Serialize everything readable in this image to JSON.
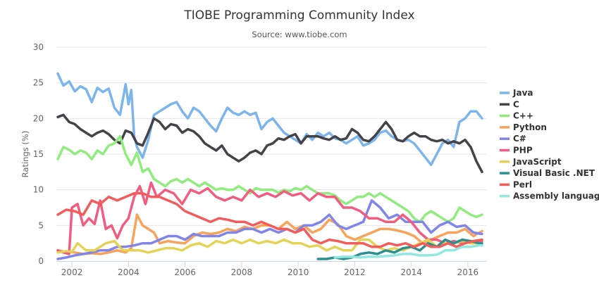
{
  "chart_data": {
    "type": "line",
    "title": "TIOBE Programming Community Index",
    "subtitle": "Source: www.tiobe.com",
    "xlabel": "",
    "ylabel": "Ratings (%)",
    "xlim": [
      2001.45,
      2016.65
    ],
    "ylim": [
      0,
      30
    ],
    "xticks": [
      2002,
      2004,
      2006,
      2008,
      2010,
      2012,
      2014,
      2016
    ],
    "yticks": [
      0,
      5,
      10,
      15,
      20,
      25,
      30
    ],
    "grid": true,
    "legend": "right",
    "series": [
      {
        "name": "Java",
        "color": "#7cb5ec",
        "x": [
          2001.5,
          2001.7,
          2001.9,
          2002.1,
          2002.3,
          2002.5,
          2002.7,
          2002.9,
          2003.1,
          2003.3,
          2003.5,
          2003.7,
          2003.9,
          2004.0,
          2004.1,
          2004.2,
          2004.3,
          2004.5,
          2004.7,
          2004.9,
          2005.1,
          2005.3,
          2005.5,
          2005.7,
          2005.9,
          2006.1,
          2006.3,
          2006.5,
          2006.7,
          2006.9,
          2007.1,
          2007.3,
          2007.5,
          2007.7,
          2007.9,
          2008.1,
          2008.3,
          2008.5,
          2008.7,
          2008.9,
          2009.1,
          2009.3,
          2009.5,
          2009.7,
          2009.9,
          2010.1,
          2010.3,
          2010.5,
          2010.7,
          2010.9,
          2011.1,
          2011.3,
          2011.5,
          2011.7,
          2011.9,
          2012.1,
          2012.3,
          2012.5,
          2012.7,
          2012.9,
          2013.1,
          2013.3,
          2013.5,
          2013.7,
          2013.9,
          2014.1,
          2014.3,
          2014.5,
          2014.7,
          2014.9,
          2015.1,
          2015.3,
          2015.5,
          2015.7,
          2015.9,
          2016.1,
          2016.3,
          2016.5
        ],
        "values": [
          26.3,
          24.6,
          25.2,
          23.8,
          24.5,
          24.1,
          22.3,
          24.3,
          23.7,
          24.2,
          21.5,
          20.5,
          24.8,
          22.0,
          24.0,
          17.5,
          16.0,
          14.5,
          17.0,
          20.5,
          21.0,
          21.5,
          22.0,
          22.3,
          21.0,
          20.0,
          21.5,
          21.0,
          20.0,
          19.0,
          18.2,
          20.0,
          21.5,
          20.8,
          20.5,
          21.0,
          20.5,
          20.8,
          18.5,
          19.5,
          20.0,
          19.0,
          18.0,
          17.5,
          17.0,
          16.5,
          17.8,
          17.0,
          18.0,
          17.5,
          18.0,
          17.2,
          17.0,
          16.5,
          17.0,
          17.5,
          16.2,
          16.5,
          17.0,
          18.0,
          18.3,
          17.5,
          17.0,
          16.8,
          17.0,
          16.5,
          15.5,
          14.5,
          13.5,
          15.0,
          16.5,
          17.0,
          16.0,
          19.5,
          20.0,
          21.0,
          21.0,
          20.0
        ]
      },
      {
        "name": "C",
        "color": "#434348",
        "x": [
          2001.5,
          2001.7,
          2001.9,
          2002.1,
          2002.3,
          2002.5,
          2002.7,
          2002.9,
          2003.1,
          2003.3,
          2003.5,
          2003.7,
          2003.9,
          2004.1,
          2004.3,
          2004.5,
          2004.7,
          2004.9,
          2005.1,
          2005.3,
          2005.5,
          2005.7,
          2005.9,
          2006.1,
          2006.3,
          2006.5,
          2006.7,
          2006.9,
          2007.1,
          2007.3,
          2007.5,
          2007.7,
          2007.9,
          2008.1,
          2008.3,
          2008.5,
          2008.7,
          2008.9,
          2009.1,
          2009.3,
          2009.5,
          2009.7,
          2009.9,
          2010.1,
          2010.3,
          2010.5,
          2010.7,
          2010.9,
          2011.1,
          2011.3,
          2011.5,
          2011.7,
          2011.9,
          2012.1,
          2012.3,
          2012.5,
          2012.7,
          2012.9,
          2013.1,
          2013.3,
          2013.5,
          2013.7,
          2013.9,
          2014.1,
          2014.3,
          2014.5,
          2014.7,
          2014.9,
          2015.1,
          2015.3,
          2015.5,
          2015.7,
          2015.9,
          2016.1,
          2016.3,
          2016.5
        ],
        "values": [
          20.2,
          20.5,
          19.5,
          19.2,
          18.5,
          18.0,
          17.5,
          18.0,
          18.3,
          17.8,
          17.0,
          16.5,
          18.3,
          18.0,
          16.5,
          16.2,
          18.0,
          20.0,
          19.5,
          18.5,
          19.2,
          19.0,
          18.0,
          18.5,
          18.2,
          17.5,
          16.5,
          16.0,
          15.5,
          16.2,
          15.0,
          14.5,
          14.0,
          14.5,
          15.2,
          15.5,
          15.0,
          16.2,
          16.5,
          17.2,
          17.0,
          17.5,
          17.8,
          16.5,
          17.5,
          17.5,
          17.5,
          17.2,
          17.0,
          17.5,
          17.0,
          17.2,
          18.5,
          18.0,
          17.0,
          16.8,
          17.5,
          18.5,
          19.5,
          18.5,
          17.0,
          16.8,
          17.5,
          18.0,
          17.5,
          17.5,
          17.0,
          16.8,
          17.0,
          16.5,
          16.8,
          16.5,
          17.0,
          16.0,
          14.0,
          12.5
        ]
      },
      {
        "name": "C++",
        "color": "#90ed7d",
        "x": [
          2001.5,
          2001.7,
          2001.9,
          2002.1,
          2002.3,
          2002.5,
          2002.7,
          2002.9,
          2003.1,
          2003.3,
          2003.5,
          2003.7,
          2003.9,
          2004.1,
          2004.3,
          2004.5,
          2004.7,
          2004.9,
          2005.1,
          2005.3,
          2005.5,
          2005.7,
          2005.9,
          2006.1,
          2006.3,
          2006.5,
          2006.7,
          2006.9,
          2007.1,
          2007.3,
          2007.5,
          2007.7,
          2007.9,
          2008.1,
          2008.3,
          2008.5,
          2008.7,
          2008.9,
          2009.1,
          2009.3,
          2009.5,
          2009.7,
          2009.9,
          2010.1,
          2010.3,
          2010.5,
          2010.7,
          2010.9,
          2011.1,
          2011.3,
          2011.5,
          2011.7,
          2011.9,
          2012.1,
          2012.3,
          2012.5,
          2012.7,
          2012.9,
          2013.1,
          2013.3,
          2013.5,
          2013.7,
          2013.9,
          2014.1,
          2014.3,
          2014.5,
          2014.7,
          2014.9,
          2015.1,
          2015.3,
          2015.5,
          2015.7,
          2015.9,
          2016.1,
          2016.3,
          2016.5
        ],
        "values": [
          14.3,
          16.0,
          15.6,
          15.0,
          15.5,
          15.2,
          14.3,
          15.5,
          15.0,
          16.2,
          16.5,
          17.5,
          15.0,
          13.5,
          15.2,
          12.5,
          13.0,
          11.5,
          11.0,
          10.5,
          11.2,
          11.5,
          11.0,
          11.5,
          11.0,
          10.5,
          11.0,
          10.5,
          10.0,
          10.2,
          10.0,
          10.0,
          10.5,
          10.0,
          9.5,
          10.2,
          10.0,
          10.0,
          10.0,
          9.6,
          10.0,
          9.8,
          10.2,
          10.0,
          10.5,
          10.0,
          9.5,
          9.5,
          9.5,
          9.2,
          8.5,
          8.0,
          8.5,
          9.0,
          9.0,
          9.5,
          9.0,
          9.5,
          9.0,
          8.5,
          8.0,
          7.5,
          7.0,
          6.0,
          5.5,
          6.5,
          7.0,
          6.5,
          6.0,
          5.5,
          6.0,
          7.5,
          7.0,
          6.5,
          6.2,
          6.5
        ]
      },
      {
        "name": "Python",
        "color": "#f7a35c",
        "x": [
          2001.5,
          2001.8,
          2002.1,
          2002.4,
          2002.7,
          2003.0,
          2003.3,
          2003.6,
          2003.9,
          2004.1,
          2004.3,
          2004.5,
          2004.7,
          2004.9,
          2005.1,
          2005.4,
          2005.7,
          2006.0,
          2006.3,
          2006.6,
          2006.9,
          2007.2,
          2007.5,
          2007.8,
          2008.1,
          2008.4,
          2008.7,
          2009.0,
          2009.3,
          2009.6,
          2009.9,
          2010.2,
          2010.5,
          2010.8,
          2011.1,
          2011.4,
          2011.7,
          2012.0,
          2012.3,
          2012.6,
          2012.9,
          2013.2,
          2013.5,
          2013.8,
          2014.1,
          2014.4,
          2014.7,
          2015.0,
          2015.3,
          2015.6,
          2015.9,
          2016.2,
          2016.5
        ],
        "values": [
          1.5,
          1.3,
          1.2,
          1.0,
          1.1,
          1.0,
          1.2,
          1.5,
          1.2,
          1.8,
          6.5,
          5.0,
          4.5,
          4.0,
          2.5,
          2.8,
          2.6,
          2.5,
          3.5,
          4.0,
          3.8,
          4.0,
          4.5,
          4.2,
          4.8,
          4.5,
          5.0,
          5.0,
          4.5,
          5.5,
          4.5,
          5.0,
          4.0,
          4.5,
          5.8,
          5.2,
          3.5,
          3.0,
          3.5,
          4.0,
          4.5,
          4.5,
          4.3,
          4.0,
          3.5,
          2.5,
          3.0,
          3.5,
          4.0,
          4.0,
          4.5,
          3.5,
          4.2
        ]
      },
      {
        "name": "C#",
        "color": "#8085e9",
        "x": [
          2001.5,
          2001.8,
          2002.1,
          2002.4,
          2002.7,
          2003.0,
          2003.3,
          2003.6,
          2003.9,
          2004.2,
          2004.5,
          2004.8,
          2005.1,
          2005.4,
          2005.7,
          2006.0,
          2006.3,
          2006.6,
          2006.9,
          2007.2,
          2007.5,
          2007.8,
          2008.1,
          2008.4,
          2008.7,
          2009.0,
          2009.3,
          2009.6,
          2009.9,
          2010.2,
          2010.5,
          2010.8,
          2011.1,
          2011.4,
          2011.7,
          2012.0,
          2012.3,
          2012.6,
          2012.9,
          2013.2,
          2013.5,
          2013.8,
          2014.1,
          2014.4,
          2014.7,
          2015.0,
          2015.3,
          2015.6,
          2015.9,
          2016.2,
          2016.5
        ],
        "values": [
          0.3,
          0.5,
          0.8,
          1.0,
          1.2,
          1.5,
          1.5,
          2.0,
          2.0,
          2.2,
          2.5,
          2.5,
          3.0,
          3.5,
          3.5,
          3.0,
          3.8,
          3.5,
          3.5,
          3.5,
          4.0,
          4.0,
          4.5,
          4.5,
          4.0,
          4.5,
          4.0,
          4.5,
          4.0,
          5.0,
          5.0,
          5.5,
          6.5,
          5.0,
          4.5,
          5.0,
          5.5,
          8.5,
          7.5,
          6.0,
          6.5,
          5.5,
          5.5,
          5.5,
          4.0,
          5.0,
          5.5,
          4.8,
          5.0,
          4.0,
          3.8
        ]
      },
      {
        "name": "PHP",
        "color": "#f15c80",
        "x": [
          2001.5,
          2001.7,
          2001.9,
          2002.0,
          2002.2,
          2002.4,
          2002.6,
          2002.8,
          2003.0,
          2003.2,
          2003.4,
          2003.6,
          2003.8,
          2004.0,
          2004.2,
          2004.4,
          2004.6,
          2004.8,
          2005.0,
          2005.3,
          2005.6,
          2005.9,
          2006.2,
          2006.5,
          2006.8,
          2007.1,
          2007.4,
          2007.7,
          2008.0,
          2008.3,
          2008.6,
          2008.9,
          2009.2,
          2009.5,
          2009.8,
          2010.1,
          2010.4,
          2010.7,
          2011.0,
          2011.3,
          2011.6,
          2011.9,
          2012.2,
          2012.5,
          2012.8,
          2013.1,
          2013.4,
          2013.7,
          2014.0,
          2014.3,
          2014.6,
          2014.9,
          2015.2,
          2015.5,
          2015.8,
          2016.1,
          2016.4,
          2016.5
        ],
        "values": [
          1.5,
          1.2,
          1.0,
          7.5,
          8.0,
          5.0,
          6.0,
          5.2,
          8.5,
          4.5,
          5.0,
          3.2,
          5.0,
          6.0,
          9.0,
          10.5,
          8.0,
          11.0,
          9.0,
          10.0,
          9.5,
          8.0,
          10.0,
          9.5,
          10.2,
          9.0,
          8.5,
          9.0,
          8.5,
          10.0,
          9.0,
          9.5,
          9.0,
          9.8,
          9.2,
          9.5,
          8.5,
          9.5,
          9.0,
          9.0,
          7.5,
          7.5,
          7.0,
          6.0,
          6.0,
          5.5,
          5.5,
          6.5,
          5.5,
          4.0,
          3.0,
          3.0,
          2.5,
          2.8,
          2.5,
          2.8,
          2.7,
          2.8
        ]
      },
      {
        "name": "JavaScript",
        "color": "#e4d354",
        "x": [
          2001.5,
          2001.8,
          2002.0,
          2002.2,
          2002.5,
          2002.8,
          2003.0,
          2003.2,
          2003.5,
          2003.8,
          2004.1,
          2004.4,
          2004.7,
          2005.0,
          2005.3,
          2005.6,
          2005.9,
          2006.2,
          2006.5,
          2006.8,
          2007.1,
          2007.4,
          2007.7,
          2008.0,
          2008.3,
          2008.6,
          2008.9,
          2009.2,
          2009.5,
          2009.8,
          2010.1,
          2010.4,
          2010.7,
          2011.0,
          2011.3,
          2011.6,
          2011.9,
          2012.2,
          2012.5,
          2012.8,
          2013.1,
          2013.4,
          2013.7,
          2014.0,
          2014.3,
          2014.6,
          2014.9,
          2015.2,
          2015.5,
          2015.8,
          2016.1,
          2016.4
        ],
        "values": [
          1.2,
          1.4,
          1.3,
          2.5,
          1.5,
          1.5,
          2.0,
          2.5,
          2.8,
          1.5,
          1.5,
          1.5,
          1.2,
          1.5,
          1.8,
          1.8,
          1.5,
          2.2,
          2.5,
          2.0,
          2.8,
          2.5,
          3.0,
          2.5,
          3.0,
          2.5,
          2.8,
          2.5,
          3.0,
          2.5,
          2.5,
          2.0,
          2.2,
          1.5,
          2.0,
          1.5,
          1.5,
          3.0,
          3.0,
          2.0,
          1.5,
          1.8,
          1.5,
          2.0,
          2.5,
          3.0,
          2.0,
          2.5,
          2.5,
          2.8,
          2.5,
          2.5
        ]
      },
      {
        "name": "Visual Basic .NET",
        "color": "#2b908f",
        "x": [
          2010.7,
          2011.0,
          2011.3,
          2011.6,
          2011.9,
          2012.2,
          2012.5,
          2012.8,
          2013.1,
          2013.4,
          2013.7,
          2014.0,
          2014.3,
          2014.6,
          2014.9,
          2015.2,
          2015.5,
          2015.8,
          2016.1,
          2016.4,
          2016.5
        ],
        "values": [
          0.3,
          0.3,
          0.5,
          0.3,
          0.5,
          1.0,
          1.2,
          1.0,
          1.5,
          1.2,
          1.8,
          2.0,
          1.5,
          2.5,
          2.0,
          3.0,
          2.5,
          3.0,
          2.8,
          2.5,
          2.5
        ]
      },
      {
        "name": "Perl",
        "color": "#f45b5b",
        "x": [
          2001.5,
          2001.8,
          2002.1,
          2002.4,
          2002.7,
          2003.0,
          2003.3,
          2003.6,
          2003.9,
          2004.2,
          2004.5,
          2004.8,
          2005.1,
          2005.4,
          2005.7,
          2006.0,
          2006.3,
          2006.6,
          2006.9,
          2007.2,
          2007.5,
          2007.8,
          2008.1,
          2008.4,
          2008.7,
          2009.0,
          2009.3,
          2009.6,
          2009.9,
          2010.2,
          2010.5,
          2010.8,
          2011.1,
          2011.4,
          2011.7,
          2012.0,
          2012.3,
          2012.6,
          2012.9,
          2013.2,
          2013.5,
          2013.8,
          2014.1,
          2014.4,
          2014.7,
          2015.0,
          2015.3,
          2015.6,
          2015.9,
          2016.2,
          2016.5
        ],
        "values": [
          6.5,
          7.2,
          7.0,
          6.5,
          8.5,
          8.0,
          9.0,
          8.5,
          9.0,
          9.5,
          9.5,
          9.0,
          9.0,
          8.5,
          8.0,
          7.0,
          6.5,
          6.0,
          5.5,
          6.0,
          5.8,
          5.5,
          5.5,
          5.0,
          5.5,
          5.0,
          4.5,
          4.5,
          4.0,
          4.5,
          3.0,
          2.5,
          3.0,
          2.8,
          2.5,
          2.5,
          2.5,
          2.0,
          2.0,
          2.5,
          2.2,
          2.5,
          2.0,
          2.5,
          2.0,
          2.0,
          2.5,
          2.0,
          2.5,
          2.8,
          3.0
        ]
      },
      {
        "name": "Assembly language",
        "color": "#91e8e1",
        "x": [
          2011.3,
          2011.6,
          2011.9,
          2012.2,
          2012.5,
          2012.8,
          2013.1,
          2013.4,
          2013.7,
          2014.0,
          2014.3,
          2014.6,
          2014.9,
          2015.2,
          2015.5,
          2015.8,
          2016.1,
          2016.4,
          2016.5
        ],
        "values": [
          0.5,
          0.6,
          0.6,
          0.5,
          0.6,
          0.6,
          0.7,
          0.8,
          1.0,
          1.0,
          0.8,
          0.8,
          0.9,
          1.5,
          1.5,
          2.0,
          2.0,
          2.2,
          2.2
        ]
      }
    ]
  }
}
